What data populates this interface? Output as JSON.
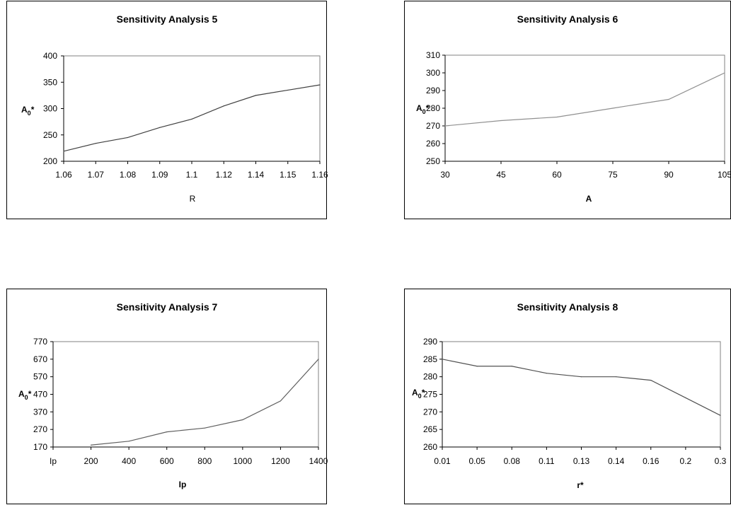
{
  "charts": [
    {
      "type": "line",
      "title": "Sensitivity Analysis 5",
      "xlabel": "R",
      "ylabel_main": "A",
      "ylabel_sub": "0",
      "ylabel_suffix": "*",
      "categories": [
        "1.06",
        "1.07",
        "1.08",
        "1.09",
        "1.1",
        "1.12",
        "1.14",
        "1.15",
        "1.16"
      ],
      "values": [
        219,
        234,
        245,
        264,
        280,
        305,
        325,
        335,
        345
      ],
      "ylim": [
        200,
        400
      ],
      "yticks": [
        "200",
        "250",
        "300",
        "350",
        "400"
      ],
      "line_color": "#404040",
      "xtitle_bold": false
    },
    {
      "type": "line",
      "title": "Sensitivity Analysis 6",
      "xlabel": "A",
      "ylabel_main": "A",
      "ylabel_sub": "0",
      "ylabel_suffix": "*",
      "categories": [
        "30",
        "45",
        "60",
        "75",
        "90",
        "105"
      ],
      "values": [
        270,
        273,
        275,
        280,
        285,
        300
      ],
      "ylim": [
        250,
        310
      ],
      "yticks": [
        "250",
        "260",
        "270",
        "280",
        "290",
        "300",
        "310"
      ],
      "line_color": "#909090",
      "xtitle_bold": true
    },
    {
      "type": "line",
      "title": "Sensitivity Analysis 7",
      "xlabel": "Ip",
      "ylabel_main": "A",
      "ylabel_sub": "0",
      "ylabel_suffix": "*",
      "categories": [
        "Ip",
        "200",
        "400",
        "600",
        "800",
        "1000",
        "1200",
        "1400"
      ],
      "values": [
        null,
        181,
        203,
        256,
        278,
        325,
        432,
        670
      ],
      "ylim": [
        170,
        770
      ],
      "yticks": [
        "170",
        "270",
        "370",
        "470",
        "570",
        "670",
        "770"
      ],
      "line_color": "#606060",
      "xtitle_bold": true
    },
    {
      "type": "line",
      "title": "Sensitivity Analysis 8",
      "xlabel": "r*",
      "ylabel_main": "A",
      "ylabel_sub": "0",
      "ylabel_suffix": "*",
      "categories": [
        "0.01",
        "0.05",
        "0.08",
        "0.11",
        "0.13",
        "0.14",
        "0.16",
        "0.2",
        "0.3"
      ],
      "values": [
        285,
        283,
        283,
        281,
        280,
        280,
        279,
        274,
        269
      ],
      "ylim": [
        260,
        290
      ],
      "yticks": [
        "260",
        "265",
        "270",
        "275",
        "280",
        "285",
        "290"
      ],
      "line_color": "#505050",
      "xtitle_bold": true
    }
  ]
}
